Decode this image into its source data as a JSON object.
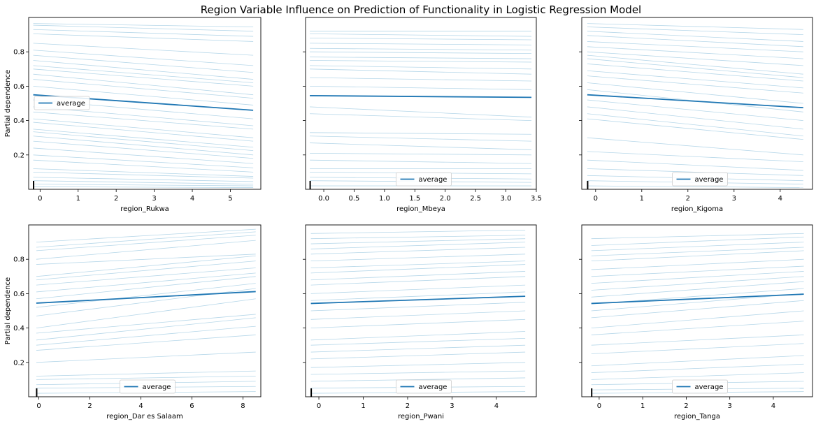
{
  "title": "Region Variable Influence on Prediction of Functionality in Logistic Regression Model",
  "ylabel": "Partial dependence",
  "legend_label": "average",
  "colors": {
    "average": "#1f77b4",
    "ice": "#9ecae1",
    "axis": "#000000"
  },
  "chart_data": [
    {
      "type": "line",
      "xlabel": "region_Rukwa",
      "xlim": [
        -0.3,
        5.8
      ],
      "ylim": [
        0.0,
        1.0
      ],
      "xticks": [
        0,
        1,
        2,
        3,
        4,
        5
      ],
      "yticks": [
        0.2,
        0.4,
        0.6,
        0.8
      ],
      "grid": false,
      "legend_position": "center-left",
      "x": [
        -0.18,
        5.6
      ],
      "average": [
        0.55,
        0.46
      ],
      "ice": [
        [
          0.965,
          0.945
        ],
        [
          0.955,
          0.92
        ],
        [
          0.93,
          0.89
        ],
        [
          0.905,
          0.86
        ],
        [
          0.85,
          0.78
        ],
        [
          0.81,
          0.72
        ],
        [
          0.78,
          0.68
        ],
        [
          0.75,
          0.64
        ],
        [
          0.72,
          0.62
        ],
        [
          0.7,
          0.6
        ],
        [
          0.67,
          0.55
        ],
        [
          0.64,
          0.53
        ],
        [
          0.6,
          0.49
        ],
        [
          0.52,
          0.41
        ],
        [
          0.48,
          0.37
        ],
        [
          0.45,
          0.35
        ],
        [
          0.41,
          0.3
        ],
        [
          0.39,
          0.28
        ],
        [
          0.35,
          0.245
        ],
        [
          0.335,
          0.225
        ],
        [
          0.31,
          0.2
        ],
        [
          0.28,
          0.18
        ],
        [
          0.24,
          0.15
        ],
        [
          0.2,
          0.125
        ],
        [
          0.17,
          0.1
        ],
        [
          0.12,
          0.075
        ],
        [
          0.1,
          0.065
        ],
        [
          0.07,
          0.045
        ],
        [
          0.05,
          0.03
        ],
        [
          0.03,
          0.02
        ],
        [
          0.015,
          0.01
        ]
      ]
    },
    {
      "type": "line",
      "xlabel": "region_Mbeya",
      "xlim": [
        -0.3,
        3.5
      ],
      "ylim": [
        0.0,
        1.0
      ],
      "xticks": [
        0,
        0.5,
        1,
        1.5,
        2,
        2.5,
        3,
        3.5
      ],
      "xtick_labels": [
        "0.0",
        "0.5",
        "1.0",
        "1.5",
        "2.0",
        "2.5",
        "3.0",
        "3.5"
      ],
      "yticks": [
        0.2,
        0.4,
        0.6,
        0.8
      ],
      "grid": false,
      "legend_position": "lower-center",
      "x": [
        -0.23,
        3.42
      ],
      "average": [
        0.545,
        0.535
      ],
      "ice": [
        [
          0.92,
          0.92
        ],
        [
          0.905,
          0.89
        ],
        [
          0.88,
          0.87
        ],
        [
          0.85,
          0.84
        ],
        [
          0.82,
          0.81
        ],
        [
          0.8,
          0.79
        ],
        [
          0.77,
          0.76
        ],
        [
          0.75,
          0.74
        ],
        [
          0.72,
          0.7
        ],
        [
          0.7,
          0.67
        ],
        [
          0.65,
          0.63
        ],
        [
          0.6,
          0.58
        ],
        [
          0.48,
          0.42
        ],
        [
          0.44,
          0.4
        ],
        [
          0.33,
          0.32
        ],
        [
          0.31,
          0.28
        ],
        [
          0.27,
          0.23
        ],
        [
          0.21,
          0.2
        ],
        [
          0.17,
          0.15
        ],
        [
          0.12,
          0.12
        ],
        [
          0.1,
          0.09
        ],
        [
          0.07,
          0.06
        ],
        [
          0.05,
          0.04
        ],
        [
          0.02,
          0.02
        ]
      ]
    },
    {
      "type": "line",
      "xlabel": "region_Kigoma",
      "xlim": [
        -0.3,
        4.7
      ],
      "ylim": [
        0.0,
        1.0
      ],
      "xticks": [
        0,
        1,
        2,
        3,
        4
      ],
      "yticks": [
        0.2,
        0.4,
        0.6,
        0.8
      ],
      "grid": false,
      "legend_position": "lower-center",
      "x": [
        -0.18,
        4.5
      ],
      "average": [
        0.55,
        0.475
      ],
      "ice": [
        [
          0.965,
          0.93
        ],
        [
          0.945,
          0.9
        ],
        [
          0.92,
          0.86
        ],
        [
          0.895,
          0.83
        ],
        [
          0.86,
          0.8
        ],
        [
          0.83,
          0.76
        ],
        [
          0.8,
          0.72
        ],
        [
          0.78,
          0.67
        ],
        [
          0.76,
          0.65
        ],
        [
          0.73,
          0.63
        ],
        [
          0.69,
          0.59
        ],
        [
          0.66,
          0.56
        ],
        [
          0.62,
          0.5
        ],
        [
          0.58,
          0.45
        ],
        [
          0.52,
          0.4
        ],
        [
          0.48,
          0.35
        ],
        [
          0.44,
          0.31
        ],
        [
          0.41,
          0.29
        ],
        [
          0.3,
          0.2
        ],
        [
          0.22,
          0.16
        ],
        [
          0.17,
          0.11
        ],
        [
          0.12,
          0.08
        ],
        [
          0.08,
          0.05
        ],
        [
          0.05,
          0.03
        ],
        [
          0.02,
          0.01
        ]
      ]
    },
    {
      "type": "line",
      "xlabel": "region_Dar es Salaam",
      "xlim": [
        -0.4,
        8.7
      ],
      "ylim": [
        0.0,
        1.0
      ],
      "xticks": [
        0,
        2,
        4,
        6,
        8
      ],
      "yticks": [
        0.2,
        0.4,
        0.6,
        0.8
      ],
      "grid": false,
      "legend_position": "lower-center",
      "x": [
        -0.1,
        8.5
      ],
      "average": [
        0.545,
        0.612
      ],
      "ice": [
        [
          0.9,
          0.975
        ],
        [
          0.87,
          0.96
        ],
        [
          0.85,
          0.94
        ],
        [
          0.8,
          0.91
        ],
        [
          0.77,
          0.83
        ],
        [
          0.7,
          0.82
        ],
        [
          0.68,
          0.79
        ],
        [
          0.65,
          0.75
        ],
        [
          0.61,
          0.72
        ],
        [
          0.57,
          0.7
        ],
        [
          0.52,
          0.66
        ],
        [
          0.47,
          0.63
        ],
        [
          0.4,
          0.57
        ],
        [
          0.37,
          0.48
        ],
        [
          0.33,
          0.46
        ],
        [
          0.3,
          0.41
        ],
        [
          0.27,
          0.36
        ],
        [
          0.2,
          0.26
        ],
        [
          0.12,
          0.15
        ],
        [
          0.1,
          0.12
        ],
        [
          0.07,
          0.09
        ],
        [
          0.05,
          0.06
        ],
        [
          0.02,
          0.03
        ]
      ]
    },
    {
      "type": "line",
      "xlabel": "region_Pwani",
      "xlim": [
        -0.3,
        4.9
      ],
      "ylim": [
        0.0,
        1.0
      ],
      "xticks": [
        0,
        1,
        2,
        3,
        4
      ],
      "yticks": [
        0.2,
        0.4,
        0.6,
        0.8
      ],
      "grid": false,
      "legend_position": "lower-center",
      "x": [
        -0.18,
        4.65
      ],
      "average": [
        0.543,
        0.585
      ],
      "ice": [
        [
          0.95,
          0.97
        ],
        [
          0.92,
          0.94
        ],
        [
          0.89,
          0.92
        ],
        [
          0.86,
          0.9
        ],
        [
          0.83,
          0.87
        ],
        [
          0.79,
          0.83
        ],
        [
          0.75,
          0.79
        ],
        [
          0.72,
          0.77
        ],
        [
          0.68,
          0.73
        ],
        [
          0.65,
          0.7
        ],
        [
          0.6,
          0.65
        ],
        [
          0.56,
          0.61
        ],
        [
          0.5,
          0.55
        ],
        [
          0.45,
          0.5
        ],
        [
          0.4,
          0.45
        ],
        [
          0.33,
          0.38
        ],
        [
          0.3,
          0.34
        ],
        [
          0.26,
          0.3
        ],
        [
          0.22,
          0.26
        ],
        [
          0.17,
          0.2
        ],
        [
          0.13,
          0.15
        ],
        [
          0.09,
          0.11
        ],
        [
          0.05,
          0.06
        ],
        [
          0.02,
          0.03
        ]
      ]
    },
    {
      "type": "line",
      "xlabel": "region_Tanga",
      "xlim": [
        -0.4,
        4.9
      ],
      "ylim": [
        0.0,
        1.0
      ],
      "xticks": [
        0,
        1,
        2,
        3,
        4
      ],
      "yticks": [
        0.2,
        0.4,
        0.6,
        0.8
      ],
      "grid": false,
      "legend_position": "lower-center",
      "x": [
        -0.18,
        4.7
      ],
      "average": [
        0.543,
        0.597
      ],
      "ice": [
        [
          0.92,
          0.95
        ],
        [
          0.88,
          0.93
        ],
        [
          0.85,
          0.9
        ],
        [
          0.82,
          0.87
        ],
        [
          0.79,
          0.85
        ],
        [
          0.74,
          0.8
        ],
        [
          0.7,
          0.76
        ],
        [
          0.66,
          0.73
        ],
        [
          0.62,
          0.7
        ],
        [
          0.58,
          0.67
        ],
        [
          0.54,
          0.63
        ],
        [
          0.5,
          0.6
        ],
        [
          0.46,
          0.56
        ],
        [
          0.4,
          0.5
        ],
        [
          0.36,
          0.44
        ],
        [
          0.3,
          0.36
        ],
        [
          0.25,
          0.31
        ],
        [
          0.18,
          0.24
        ],
        [
          0.14,
          0.19
        ],
        [
          0.1,
          0.14
        ],
        [
          0.07,
          0.09
        ],
        [
          0.04,
          0.05
        ],
        [
          0.02,
          0.03
        ]
      ]
    }
  ]
}
